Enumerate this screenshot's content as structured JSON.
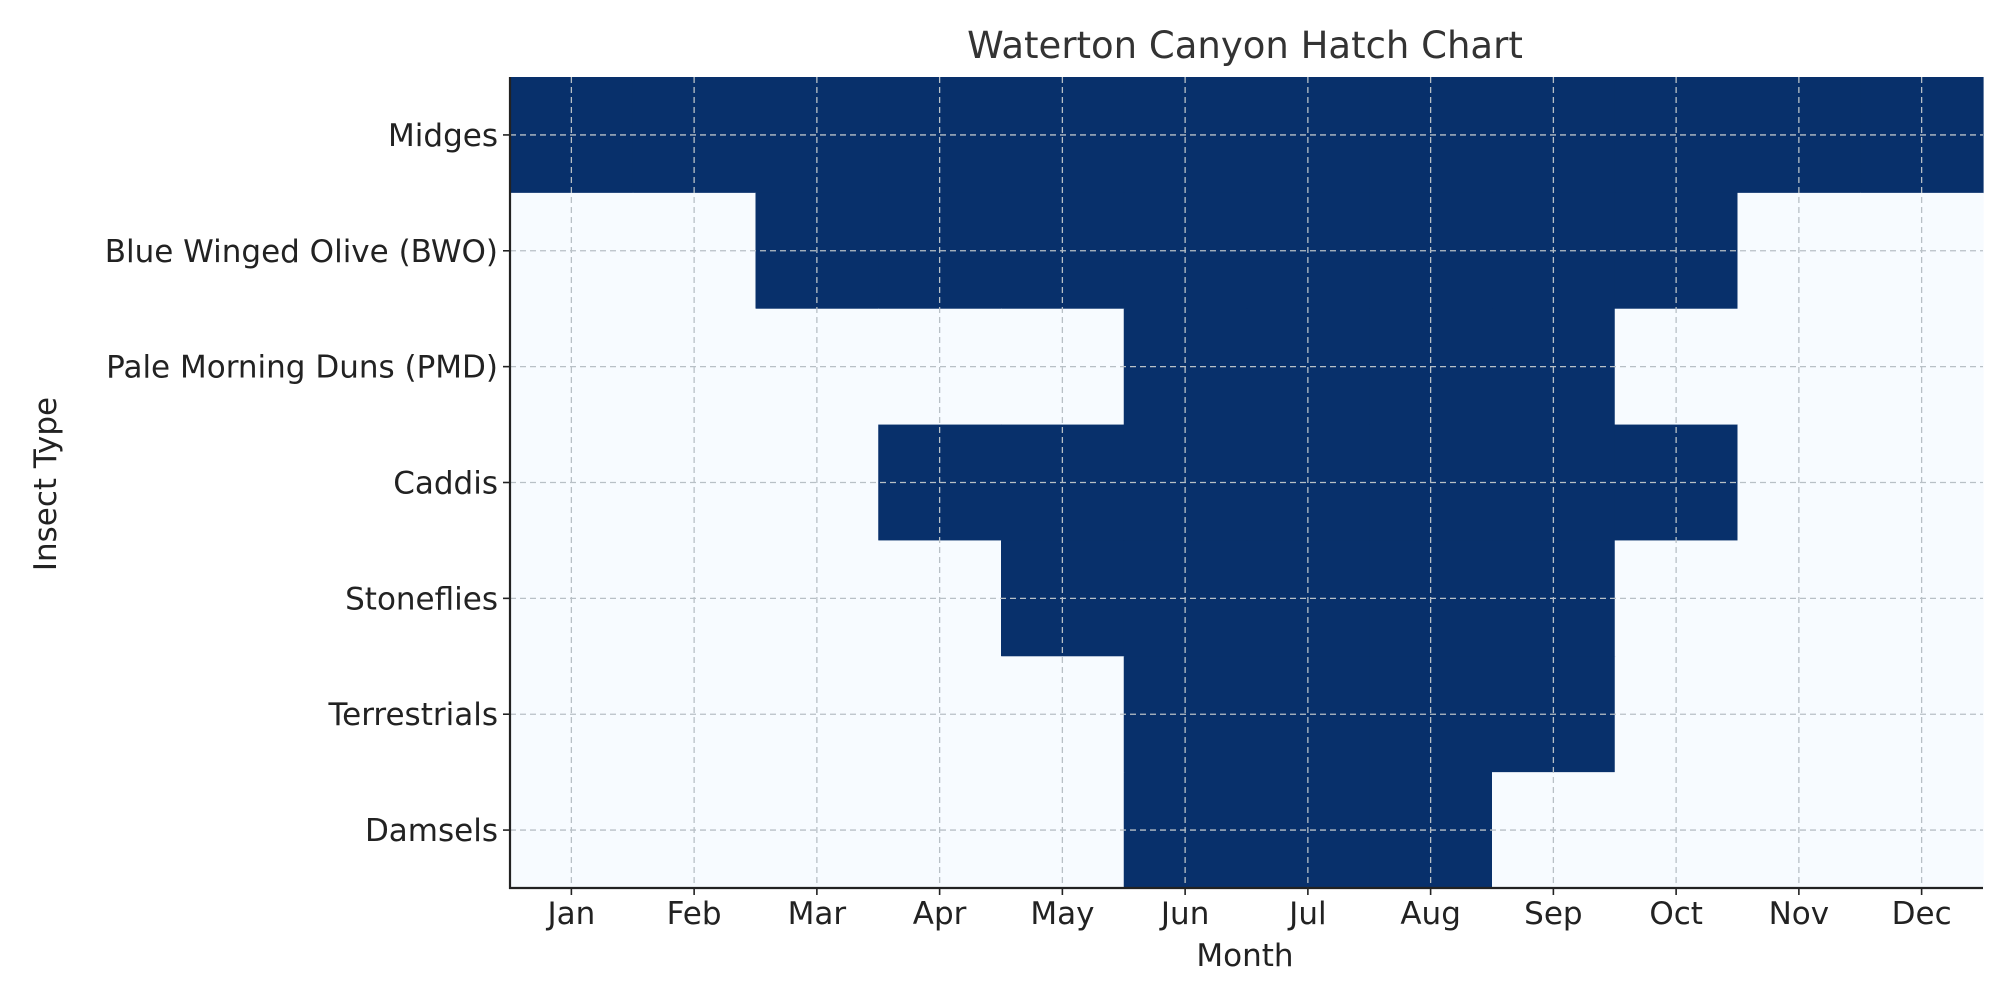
{
  "chart_data": {
    "type": "heatmap",
    "title": "Waterton Canyon Hatch Chart",
    "xlabel": "Month",
    "ylabel": "Insect Type",
    "x": [
      "Jan",
      "Feb",
      "Mar",
      "Apr",
      "May",
      "Jun",
      "Jul",
      "Aug",
      "Sep",
      "Oct",
      "Nov",
      "Dec"
    ],
    "y": [
      "Midges",
      "Blue Winged Olive (BWO)",
      "Pale Morning Duns (PMD)",
      "Caddis",
      "Stoneflies",
      "Terrestrials",
      "Damsels"
    ],
    "values": [
      [
        1,
        1,
        1,
        1,
        1,
        1,
        1,
        1,
        1,
        1,
        1,
        1
      ],
      [
        0,
        0,
        1,
        1,
        1,
        1,
        1,
        1,
        1,
        1,
        0,
        0
      ],
      [
        0,
        0,
        0,
        0,
        0,
        1,
        1,
        1,
        1,
        0,
        0,
        0
      ],
      [
        0,
        0,
        0,
        1,
        1,
        1,
        1,
        1,
        1,
        1,
        0,
        0
      ],
      [
        0,
        0,
        0,
        0,
        1,
        1,
        1,
        1,
        1,
        0,
        0,
        0
      ],
      [
        0,
        0,
        0,
        0,
        0,
        1,
        1,
        1,
        1,
        0,
        0,
        0
      ],
      [
        0,
        0,
        0,
        0,
        0,
        1,
        1,
        1,
        0,
        0,
        0,
        0
      ]
    ],
    "colormap": "Blues",
    "colors": {
      "active": "#08306b",
      "inactive": "#f7fbff",
      "grid": "#b8c0c6",
      "axis": "#222222",
      "title": "#333333"
    },
    "grid": true,
    "legend": "none"
  }
}
